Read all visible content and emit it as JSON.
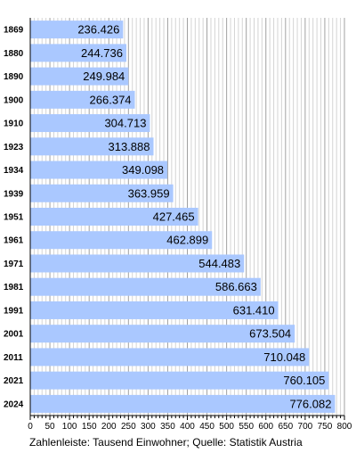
{
  "chart_data": {
    "type": "bar",
    "orientation": "horizontal",
    "categories": [
      "1869",
      "1880",
      "1890",
      "1900",
      "1910",
      "1923",
      "1934",
      "1939",
      "1951",
      "1961",
      "1971",
      "1981",
      "1991",
      "2001",
      "2011",
      "2021",
      "2024"
    ],
    "values": [
      236.426,
      244.736,
      249.984,
      266.374,
      304.713,
      313.888,
      349.098,
      363.959,
      427.465,
      462.899,
      544.483,
      586.663,
      631.41,
      673.504,
      710.048,
      760.105,
      776.082
    ],
    "value_labels": [
      "236.426",
      "244.736",
      "249.984",
      "266.374",
      "304.713",
      "313.888",
      "349.098",
      "363.959",
      "427.465",
      "462.899",
      "544.483",
      "586.663",
      "631.410",
      "673.504",
      "710.048",
      "760.105",
      "776.082"
    ],
    "xlim": [
      0,
      800
    ],
    "x_ticks": [
      0,
      50,
      100,
      150,
      200,
      250,
      300,
      350,
      400,
      450,
      500,
      550,
      600,
      650,
      700,
      750,
      800
    ],
    "grid": "vertical minor lines every 10, major every 50",
    "bar_color": "#aac8ff",
    "caption": "Zahlenleiste: Tausend Einwohner; Quelle: Statistik Austria"
  }
}
